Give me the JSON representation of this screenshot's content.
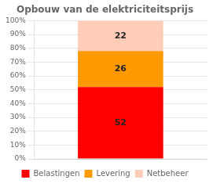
{
  "chart_data": {
    "type": "bar",
    "title": "Opbouw van de elektriciteitsprijs",
    "categories": [
      null
    ],
    "series": [
      {
        "name": "Belastingen",
        "color": "#ff0000",
        "values": [
          52
        ]
      },
      {
        "name": "Levering",
        "color": "#ff9900",
        "values": [
          26
        ]
      },
      {
        "name": "Netbeheer",
        "color": "#ffccb8",
        "values": [
          22
        ]
      }
    ],
    "stacked": true,
    "ylim": [
      0,
      100
    ],
    "yticks": [
      {
        "value": 0,
        "label": "0%"
      },
      {
        "value": 10,
        "label": "10%"
      },
      {
        "value": 20,
        "label": "20%"
      },
      {
        "value": 30,
        "label": "30%"
      },
      {
        "value": 40,
        "label": "40%"
      },
      {
        "value": 50,
        "label": "50%"
      },
      {
        "value": 60,
        "label": "60%"
      },
      {
        "value": 70,
        "label": "70%"
      },
      {
        "value": 80,
        "label": "80%"
      },
      {
        "value": 90,
        "label": "90%"
      },
      {
        "value": 100,
        "label": "100%"
      }
    ],
    "grid": true,
    "legend": "bottom",
    "data_labels": true,
    "tick_labels": "y"
  }
}
